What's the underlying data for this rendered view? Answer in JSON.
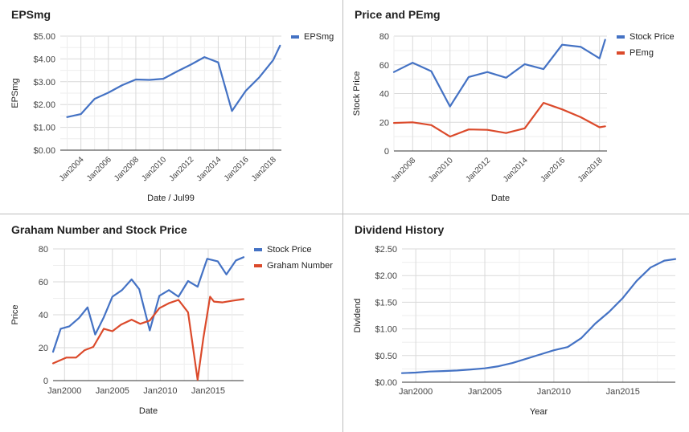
{
  "colors": {
    "blue": "#4472c4",
    "red": "#db4a2b",
    "grid": "#d9d9d9",
    "axis_text": "#444444",
    "baseline": "#333333"
  },
  "chart_data": [
    {
      "type": "line",
      "title": "EPSmg",
      "xlabel": "Date / Jul99",
      "ylabel": "EPSmg",
      "x_ticks": [
        "Jan2004",
        "Jan2006",
        "Jan2008",
        "Jan2010",
        "Jan2012",
        "Jan2014",
        "Jan2016",
        "Jan2018"
      ],
      "y_ticks": [
        "$0.00",
        "$1.00",
        "$2.00",
        "$3.00",
        "$4.00",
        "$5.00"
      ],
      "xlim": [
        2002.5,
        2018.6
      ],
      "ylim": [
        0,
        5
      ],
      "legend_position": "right",
      "series": [
        {
          "name": "EPSmg",
          "color": "#4472c4",
          "x": [
            2003,
            2004,
            2005,
            2006,
            2007,
            2008,
            2009,
            2010,
            2011,
            2012,
            2013,
            2014,
            2015,
            2016,
            2017,
            2018,
            2018.5
          ],
          "y": [
            1.45,
            1.58,
            2.25,
            2.52,
            2.85,
            3.1,
            3.08,
            3.13,
            3.45,
            3.75,
            4.08,
            3.85,
            1.72,
            2.6,
            3.2,
            3.95,
            4.58
          ]
        }
      ]
    },
    {
      "type": "line",
      "title": "Price and PEmg",
      "xlabel": "Date",
      "ylabel": "Stock Price",
      "x_ticks": [
        "Jan2008",
        "Jan2010",
        "Jan2012",
        "Jan2014",
        "Jan2016",
        "Jan2018"
      ],
      "y_ticks": [
        "0",
        "20",
        "40",
        "60",
        "80"
      ],
      "xlim": [
        2007,
        2018.4
      ],
      "ylim": [
        0,
        80
      ],
      "legend_position": "right",
      "series": [
        {
          "name": "Stock Price",
          "color": "#4472c4",
          "x": [
            2007,
            2008,
            2009,
            2010,
            2011,
            2012,
            2013,
            2014,
            2015,
            2016,
            2017,
            2018,
            2018.3
          ],
          "y": [
            55,
            61.5,
            55.5,
            31,
            51.5,
            55,
            51,
            60.5,
            57,
            74,
            72.5,
            64.5,
            77.5
          ]
        },
        {
          "name": "PEmg",
          "color": "#db4a2b",
          "x": [
            2007,
            2008,
            2009,
            2010,
            2011,
            2012,
            2013,
            2014,
            2015,
            2016,
            2017,
            2018,
            2018.3
          ],
          "y": [
            19.5,
            20,
            18,
            10,
            15,
            14.7,
            12.5,
            15.8,
            33.5,
            29,
            23.5,
            16.5,
            17.2
          ]
        }
      ]
    },
    {
      "type": "line",
      "title": "Graham Number and Stock Price",
      "xlabel": "Date",
      "ylabel": "Price",
      "x_ticks": [
        "Jan2000",
        "Jan2005",
        "Jan2010",
        "Jan2015"
      ],
      "y_ticks": [
        "0",
        "20",
        "40",
        "60",
        "80"
      ],
      "xlim": [
        1998.8,
        2018.7
      ],
      "ylim": [
        0,
        80
      ],
      "legend_position": "right",
      "series": [
        {
          "name": "Stock Price",
          "color": "#4472c4",
          "x": [
            1998.8,
            1999.6,
            2000.5,
            2001.5,
            2002.4,
            2003.2,
            2004.1,
            2005,
            2006,
            2007,
            2007.8,
            2008.9,
            2009.9,
            2010.9,
            2011.9,
            2012.9,
            2013.9,
            2014.9,
            2016,
            2016.9,
            2017.9,
            2018.7
          ],
          "y": [
            17.5,
            31.5,
            33,
            38,
            44.5,
            28,
            38.5,
            51,
            55,
            61.5,
            55.5,
            30.5,
            51.5,
            55,
            51,
            60.5,
            57,
            74,
            72.5,
            64.5,
            73,
            75
          ]
        },
        {
          "name": "Graham Number",
          "color": "#db4a2b",
          "x": [
            1998.8,
            2000.2,
            2001.2,
            2002.1,
            2003,
            2004.1,
            2005,
            2005.9,
            2007,
            2007.9,
            2008.9,
            2009.9,
            2010.9,
            2011.9,
            2012.9,
            2013.9,
            2014.5,
            2015.2,
            2015.6,
            2016.5,
            2017.5,
            2018.7
          ],
          "y": [
            10.5,
            14,
            14,
            18.5,
            20.5,
            31.5,
            30,
            34,
            37,
            34.5,
            36.5,
            44,
            47,
            49,
            41.5,
            0.5,
            26,
            51,
            48,
            47.5,
            48.5,
            49.5
          ]
        }
      ]
    },
    {
      "type": "line",
      "title": "Dividend History",
      "xlabel": "Year",
      "ylabel": "Dividend",
      "x_ticks": [
        "Jan2000",
        "Jan2005",
        "Jan2010",
        "Jan2015"
      ],
      "y_ticks": [
        "$0.00",
        "$0.50",
        "$1.00",
        "$1.50",
        "$2.00",
        "$2.50"
      ],
      "xlim": [
        1999,
        2018.8
      ],
      "ylim": [
        0,
        2.5
      ],
      "legend_position": "none",
      "series": [
        {
          "name": "",
          "color": "#4472c4",
          "x": [
            1999,
            2000,
            2001,
            2002,
            2003,
            2004,
            2005,
            2006,
            2007,
            2008,
            2009,
            2010,
            2011,
            2012,
            2013,
            2014,
            2015,
            2016,
            2017,
            2018,
            2018.8
          ],
          "y": [
            0.17,
            0.18,
            0.2,
            0.21,
            0.22,
            0.24,
            0.26,
            0.3,
            0.36,
            0.44,
            0.52,
            0.6,
            0.66,
            0.83,
            1.1,
            1.32,
            1.58,
            1.9,
            2.15,
            2.28,
            2.31
          ]
        }
      ]
    }
  ]
}
